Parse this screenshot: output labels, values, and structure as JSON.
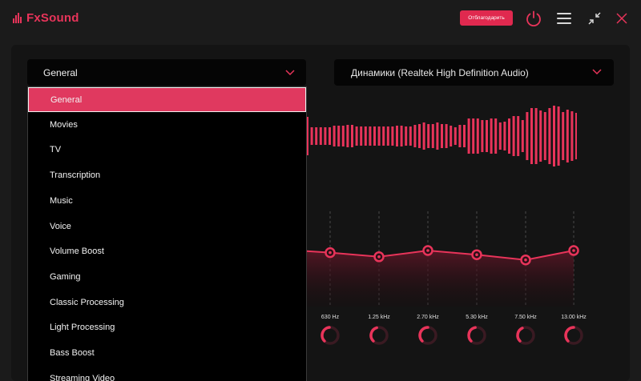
{
  "app": {
    "name": "FxSound",
    "accent": "#e8345a"
  },
  "titlebar": {
    "donate_label": "Отблагодарить"
  },
  "preset": {
    "selected": "General"
  },
  "device": {
    "selected": "Динамики (Realtek High Definition Audio)"
  },
  "dropdown": {
    "options": [
      "General",
      "Movies",
      "TV",
      "Transcription",
      "Music",
      "Voice",
      "Volume Boost",
      "Gaming",
      "Classic Processing",
      "Light Processing",
      "Bass Boost",
      "Streaming Video"
    ],
    "selected_index": 0
  },
  "equalizer": {
    "bands": [
      {
        "label": "630 Hz",
        "level": 0.48
      },
      {
        "label": "1.25 kHz",
        "level": 0.44
      },
      {
        "label": "2.70 kHz",
        "level": 0.5
      },
      {
        "label": "5.30 kHz",
        "level": 0.46
      },
      {
        "label": "7.50 kHz",
        "level": 0.41
      },
      {
        "label": "13.00 kHz",
        "level": 0.5
      }
    ]
  }
}
